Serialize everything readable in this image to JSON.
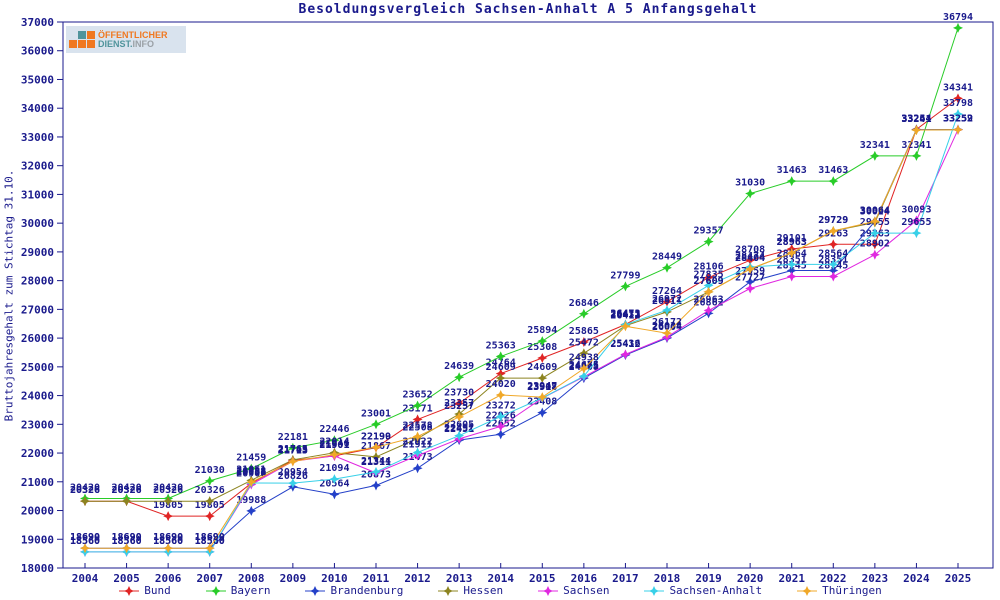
{
  "title": "Besoldungsvergleich Sachsen-Anhalt A 5 Anfangsgehalt",
  "logo": {
    "line1": "ÖFFENTLICHER",
    "line2_part1": "DIENST.",
    "line2_part2": "INFO"
  },
  "colors": {
    "text": "#1a1a8c",
    "axis": "#1a1a8c",
    "label": "#1a1a8c",
    "background": "#ffffff",
    "logo_orange": "#f07820",
    "logo_teal": "#50949c"
  },
  "chart_data": {
    "type": "line",
    "title": "Besoldungsvergleich Sachsen-Anhalt A 5 Anfangsgehalt",
    "xlabel": "",
    "ylabel": "Bruttojahresgehalt zum Stichtag 31.10.",
    "ylim": [
      18000,
      37000
    ],
    "ytick_step": 1000,
    "grid": false,
    "point_labels": true,
    "legend_position": "bottom",
    "x": [
      2004,
      2005,
      2006,
      2007,
      2008,
      2009,
      2010,
      2011,
      2012,
      2013,
      2014,
      2015,
      2016,
      2017,
      2018,
      2019,
      2020,
      2021,
      2022,
      2023,
      2024,
      2025
    ],
    "series": [
      {
        "name": "Bund",
        "color": "#e02424",
        "values": [
          20326,
          20326,
          19805,
          19805,
          20951,
          21745,
          21901,
          22190,
          23171,
          23730,
          24764,
          25308,
          25865,
          26473,
          27264,
          28106,
          28708,
          29101,
          29263,
          29263,
          33264,
          34341
        ]
      },
      {
        "name": "Bayern",
        "color": "#28cc28",
        "values": [
          20420,
          20420,
          20420,
          21030,
          21459,
          22181,
          22446,
          23001,
          23652,
          24639,
          25363,
          25894,
          26846,
          27799,
          28449,
          29357,
          31030,
          31463,
          31463,
          32341,
          32341,
          36794
        ]
      },
      {
        "name": "Brandenburg",
        "color": "#2440c8",
        "values": [
          18690,
          18690,
          18690,
          18690,
          19988,
          20826,
          20564,
          20873,
          21473,
          22451,
          22652,
          23408,
          24608,
          25412,
          26004,
          26862,
          27959,
          28351,
          28351,
          30064,
          33254,
          33259
        ]
      },
      {
        "name": "Hessen",
        "color": "#8c8420",
        "values": [
          20326,
          20326,
          20326,
          20326,
          21051,
          21765,
          22014,
          21867,
          22508,
          23357,
          24609,
          24609,
          25472,
          26432,
          26911,
          27609,
          28404,
          28963,
          29729,
          30024,
          33241,
          33252
        ]
      },
      {
        "name": "Sachsen",
        "color": "#e028e0",
        "values": [
          18560,
          18560,
          18560,
          18560,
          20906,
          21713,
          21901,
          21311,
          21911,
          22492,
          22926,
          23908,
          24655,
          25436,
          26034,
          26963,
          27727,
          28145,
          28145,
          28902,
          30093,
          33252
        ]
      },
      {
        "name": "Sachsen-Anhalt",
        "color": "#38d0e8",
        "values": [
          18560,
          18560,
          18560,
          18560,
          20958,
          20954,
          21094,
          21344,
          22022,
          22605,
          23272,
          23917,
          24675,
          26471,
          26972,
          27835,
          28474,
          28564,
          28564,
          29655,
          29655,
          33798
        ]
      },
      {
        "name": "Thüringen",
        "color": "#f0a828",
        "values": [
          18690,
          18690,
          18690,
          18690,
          20988,
          21705,
          21946,
          22199,
          22578,
          23257,
          24020,
          23947,
          24938,
          26412,
          26172,
          27609,
          28404,
          28963,
          29729,
          30064,
          33241,
          33252
        ]
      }
    ]
  }
}
